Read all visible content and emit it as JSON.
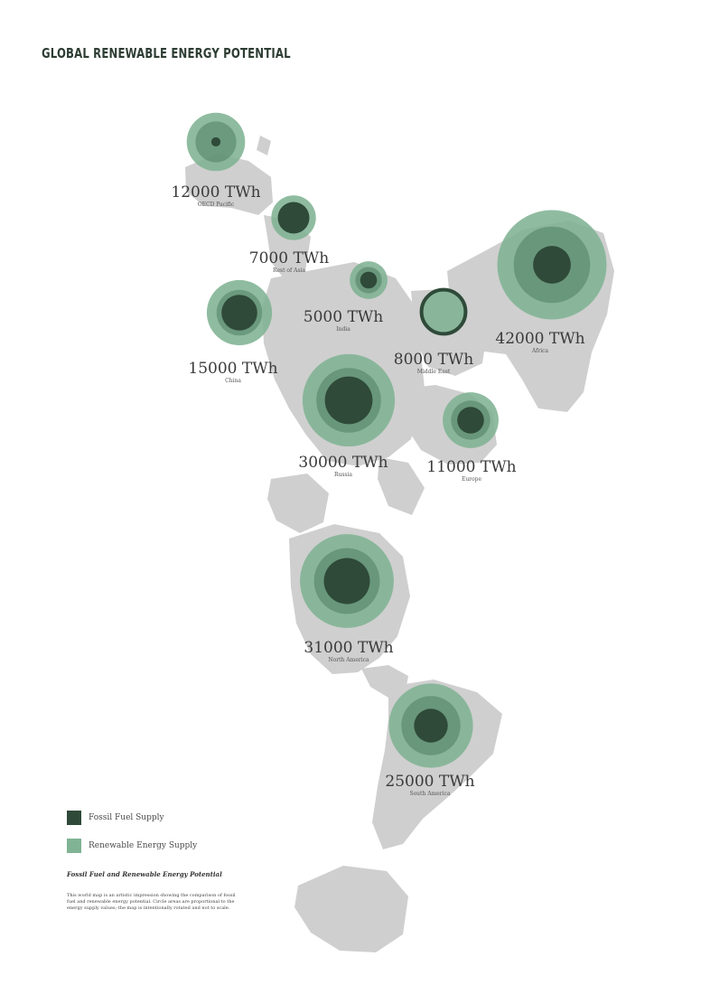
{
  "title": "GLOBAL RENEWABLE ENERGY POTENTIAL",
  "colors": {
    "land": "#cfcfcf",
    "renewable": "#7fb393",
    "fossil": "#2f4a39",
    "overlap": "#4f7d62"
  },
  "regions": [
    {
      "value_label": "12000 TWh",
      "region": "OECD Pacific",
      "fossil_value": 300,
      "renewable_value": 12000
    },
    {
      "value_label": "7000 TWh",
      "region": "Rest of Asia",
      "fossil_value": 3500,
      "renewable_value": 7000
    },
    {
      "value_label": "5000 TWh",
      "region": "India",
      "fossil_value": 1000,
      "renewable_value": 5000
    },
    {
      "value_label": "15000 TWh",
      "region": "China",
      "fossil_value": 4500,
      "renewable_value": 15000
    },
    {
      "value_label": "8000 TWh",
      "region": "Middle East",
      "fossil_value": 8000,
      "renewable_value": 6500
    },
    {
      "value_label": "42000 TWh",
      "region": "Africa",
      "fossil_value": 5000,
      "renewable_value": 42000
    },
    {
      "value_label": "30000 TWh",
      "region": "Russia",
      "fossil_value": 8000,
      "renewable_value": 30000
    },
    {
      "value_label": "11000 TWh",
      "region": "Europe",
      "fossil_value": 2500,
      "renewable_value": 11000
    },
    {
      "value_label": "31000 TWh",
      "region": "North America",
      "fossil_value": 7500,
      "renewable_value": 31000
    },
    {
      "value_label": "25000 TWh",
      "region": "South America",
      "fossil_value": 4000,
      "renewable_value": 25000
    }
  ],
  "legend": {
    "fossil_label": "Fossil Fuel Supply",
    "renewable_label": "Renewable Energy Supply"
  },
  "note": {
    "title": "Fossil Fuel and Renewable Energy Potential",
    "body": "This world map is an artistic impression showing the comparison of fossil fuel and renewable energy potential. Circle areas are proportional to the energy supply values; the map is intentionally rotated and not to scale."
  }
}
